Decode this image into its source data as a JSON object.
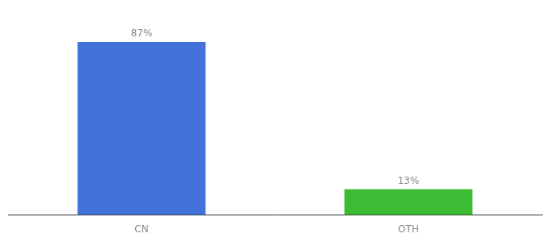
{
  "chart_data": {
    "type": "bar",
    "categories": [
      "CN",
      "OTH"
    ],
    "values": [
      87,
      13
    ],
    "colors": [
      "#4472db",
      "#3dbb35"
    ],
    "value_labels": [
      "87%",
      "13%"
    ],
    "data_labels": true,
    "ylim": [
      0,
      100
    ],
    "grid": false,
    "tick_labels": "x"
  }
}
